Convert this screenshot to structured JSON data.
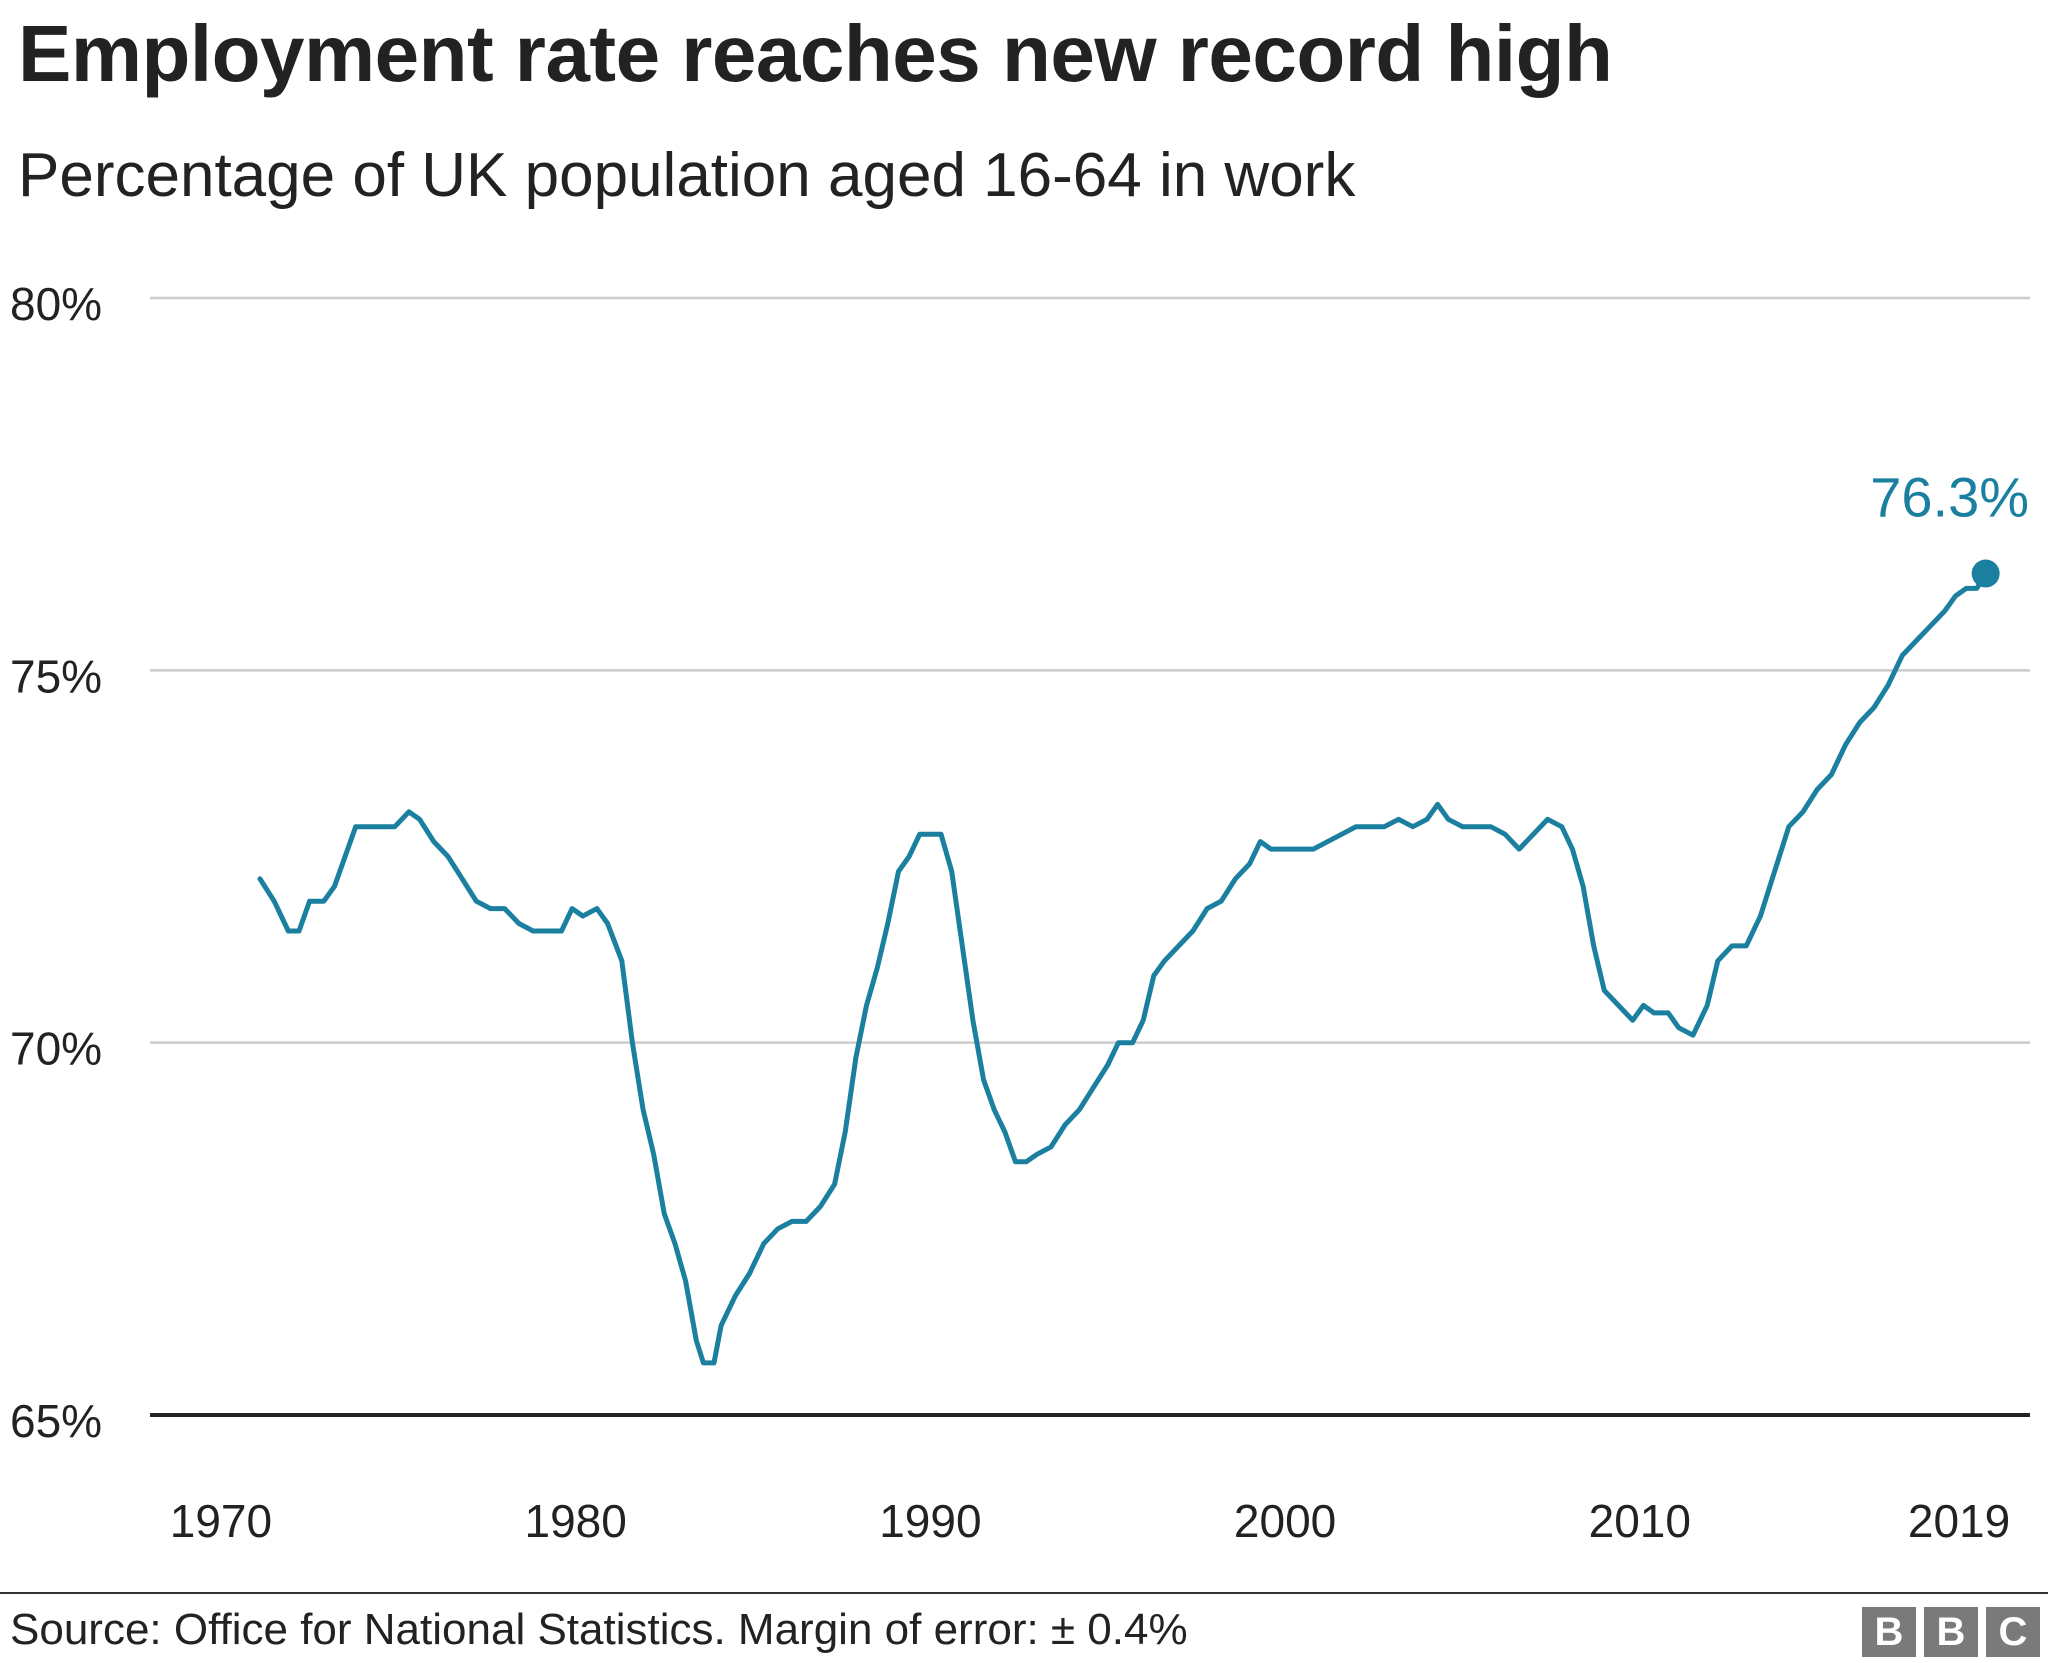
{
  "title": "Employment rate reaches new record high",
  "subtitle": "Percentage of UK population aged 16-64 in work",
  "source": "Source: Office for National Statistics. Margin of error: ± 0.4%",
  "logo": [
    "B",
    "B",
    "C"
  ],
  "colors": {
    "line": "#1b7fa0",
    "grid": "#cccccc",
    "baseline": "#222222",
    "text": "#222222"
  },
  "chart_data": {
    "type": "line",
    "title": "Employment rate reaches new record high",
    "subtitle": "Percentage of UK population aged 16-64 in work",
    "xlabel": "",
    "ylabel": "",
    "xlim": [
      1968,
      2021
    ],
    "ylim": [
      65,
      80
    ],
    "x_ticks": [
      1970,
      1980,
      1990,
      2000,
      2010,
      2019
    ],
    "y_ticks": [
      65,
      70,
      75,
      80
    ],
    "y_tick_labels": [
      "65%",
      "70%",
      "75%",
      "80%"
    ],
    "grid": true,
    "legend": "none",
    "end_label": "76.3%",
    "series": [
      {
        "points": [
          [
            1971.1,
            72.2
          ],
          [
            1971.5,
            71.9
          ],
          [
            1971.9,
            71.5
          ],
          [
            1972.2,
            71.5
          ],
          [
            1972.5,
            71.9
          ],
          [
            1972.9,
            71.9
          ],
          [
            1973.2,
            72.1
          ],
          [
            1973.5,
            72.5
          ],
          [
            1973.8,
            72.9
          ],
          [
            1974.1,
            72.9
          ],
          [
            1974.5,
            72.9
          ],
          [
            1974.9,
            72.9
          ],
          [
            1975.3,
            73.1
          ],
          [
            1975.6,
            73.0
          ],
          [
            1976.0,
            72.7
          ],
          [
            1976.4,
            72.5
          ],
          [
            1976.8,
            72.2
          ],
          [
            1977.2,
            71.9
          ],
          [
            1977.6,
            71.8
          ],
          [
            1978.0,
            71.8
          ],
          [
            1978.4,
            71.6
          ],
          [
            1978.8,
            71.5
          ],
          [
            1979.2,
            71.5
          ],
          [
            1979.6,
            71.5
          ],
          [
            1979.9,
            71.8
          ],
          [
            1980.2,
            71.7
          ],
          [
            1980.6,
            71.8
          ],
          [
            1980.9,
            71.6
          ],
          [
            1981.3,
            71.1
          ],
          [
            1981.6,
            70.0
          ],
          [
            1981.9,
            69.1
          ],
          [
            1982.2,
            68.5
          ],
          [
            1982.5,
            67.7
          ],
          [
            1982.8,
            67.3
          ],
          [
            1983.1,
            66.8
          ],
          [
            1983.4,
            66.0
          ],
          [
            1983.6,
            65.7
          ],
          [
            1983.9,
            65.7
          ],
          [
            1984.1,
            66.2
          ],
          [
            1984.5,
            66.6
          ],
          [
            1984.9,
            66.9
          ],
          [
            1985.3,
            67.3
          ],
          [
            1985.7,
            67.5
          ],
          [
            1986.1,
            67.6
          ],
          [
            1986.5,
            67.6
          ],
          [
            1986.9,
            67.8
          ],
          [
            1987.3,
            68.1
          ],
          [
            1987.6,
            68.8
          ],
          [
            1987.9,
            69.8
          ],
          [
            1988.2,
            70.5
          ],
          [
            1988.5,
            71.0
          ],
          [
            1988.8,
            71.6
          ],
          [
            1989.1,
            72.3
          ],
          [
            1989.4,
            72.5
          ],
          [
            1989.7,
            72.8
          ],
          [
            1990.0,
            72.8
          ],
          [
            1990.3,
            72.8
          ],
          [
            1990.6,
            72.3
          ],
          [
            1990.9,
            71.3
          ],
          [
            1991.2,
            70.3
          ],
          [
            1991.5,
            69.5
          ],
          [
            1991.8,
            69.1
          ],
          [
            1992.1,
            68.8
          ],
          [
            1992.4,
            68.4
          ],
          [
            1992.7,
            68.4
          ],
          [
            1993.0,
            68.5
          ],
          [
            1993.4,
            68.6
          ],
          [
            1993.8,
            68.9
          ],
          [
            1994.2,
            69.1
          ],
          [
            1994.6,
            69.4
          ],
          [
            1995.0,
            69.7
          ],
          [
            1995.3,
            70.0
          ],
          [
            1995.7,
            70.0
          ],
          [
            1996.0,
            70.3
          ],
          [
            1996.3,
            70.9
          ],
          [
            1996.6,
            71.1
          ],
          [
            1997.0,
            71.3
          ],
          [
            1997.4,
            71.5
          ],
          [
            1997.8,
            71.8
          ],
          [
            1998.2,
            71.9
          ],
          [
            1998.6,
            72.2
          ],
          [
            1999.0,
            72.4
          ],
          [
            1999.3,
            72.7
          ],
          [
            1999.6,
            72.6
          ],
          [
            2000.0,
            72.6
          ],
          [
            2000.4,
            72.6
          ],
          [
            2000.8,
            72.6
          ],
          [
            2001.2,
            72.7
          ],
          [
            2001.6,
            72.8
          ],
          [
            2002.0,
            72.9
          ],
          [
            2002.4,
            72.9
          ],
          [
            2002.8,
            72.9
          ],
          [
            2003.2,
            73.0
          ],
          [
            2003.6,
            72.9
          ],
          [
            2004.0,
            73.0
          ],
          [
            2004.3,
            73.2
          ],
          [
            2004.6,
            73.0
          ],
          [
            2005.0,
            72.9
          ],
          [
            2005.4,
            72.9
          ],
          [
            2005.8,
            72.9
          ],
          [
            2006.2,
            72.8
          ],
          [
            2006.6,
            72.6
          ],
          [
            2007.0,
            72.8
          ],
          [
            2007.4,
            73.0
          ],
          [
            2007.8,
            72.9
          ],
          [
            2008.1,
            72.6
          ],
          [
            2008.4,
            72.1
          ],
          [
            2008.7,
            71.3
          ],
          [
            2009.0,
            70.7
          ],
          [
            2009.4,
            70.5
          ],
          [
            2009.8,
            70.3
          ],
          [
            2010.1,
            70.5
          ],
          [
            2010.4,
            70.4
          ],
          [
            2010.8,
            70.4
          ],
          [
            2011.1,
            70.2
          ],
          [
            2011.5,
            70.1
          ],
          [
            2011.9,
            70.5
          ],
          [
            2012.2,
            71.1
          ],
          [
            2012.6,
            71.3
          ],
          [
            2013.0,
            71.3
          ],
          [
            2013.4,
            71.7
          ],
          [
            2013.8,
            72.3
          ],
          [
            2014.2,
            72.9
          ],
          [
            2014.6,
            73.1
          ],
          [
            2015.0,
            73.4
          ],
          [
            2015.4,
            73.6
          ],
          [
            2015.8,
            74.0
          ],
          [
            2016.2,
            74.3
          ],
          [
            2016.6,
            74.5
          ],
          [
            2017.0,
            74.8
          ],
          [
            2017.4,
            75.2
          ],
          [
            2017.8,
            75.4
          ],
          [
            2018.2,
            75.6
          ],
          [
            2018.6,
            75.8
          ],
          [
            2018.9,
            76.0
          ],
          [
            2019.2,
            76.1
          ],
          [
            2019.5,
            76.1
          ],
          [
            2019.75,
            76.3
          ]
        ]
      }
    ]
  }
}
